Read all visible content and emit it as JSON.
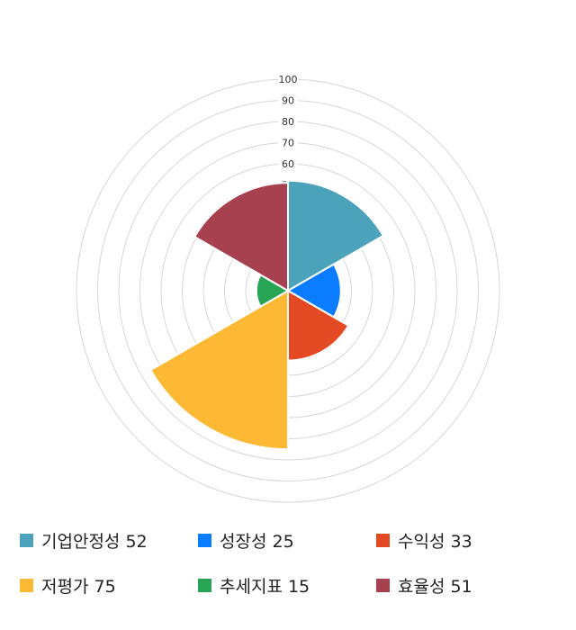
{
  "chart_data": {
    "type": "polarArea",
    "categories": [
      "기업안정성",
      "성장성",
      "수익성",
      "저평가",
      "추세지표",
      "효율성"
    ],
    "values": [
      52,
      25,
      33,
      75,
      15,
      51
    ],
    "colors": [
      "#4aa3ba",
      "#0a7cff",
      "#e34a24",
      "#fdb933",
      "#27a554",
      "#a8414f"
    ],
    "rlim": [
      0,
      100
    ],
    "rticks": [
      0,
      10,
      20,
      30,
      40,
      50,
      60,
      70,
      80,
      90,
      100
    ],
    "legend_position": "bottom",
    "legend": [
      "기업안정성 52",
      "성장성 25",
      "수익성 33",
      "저평가 75",
      "추세지표 15",
      "효율성 51"
    ]
  }
}
